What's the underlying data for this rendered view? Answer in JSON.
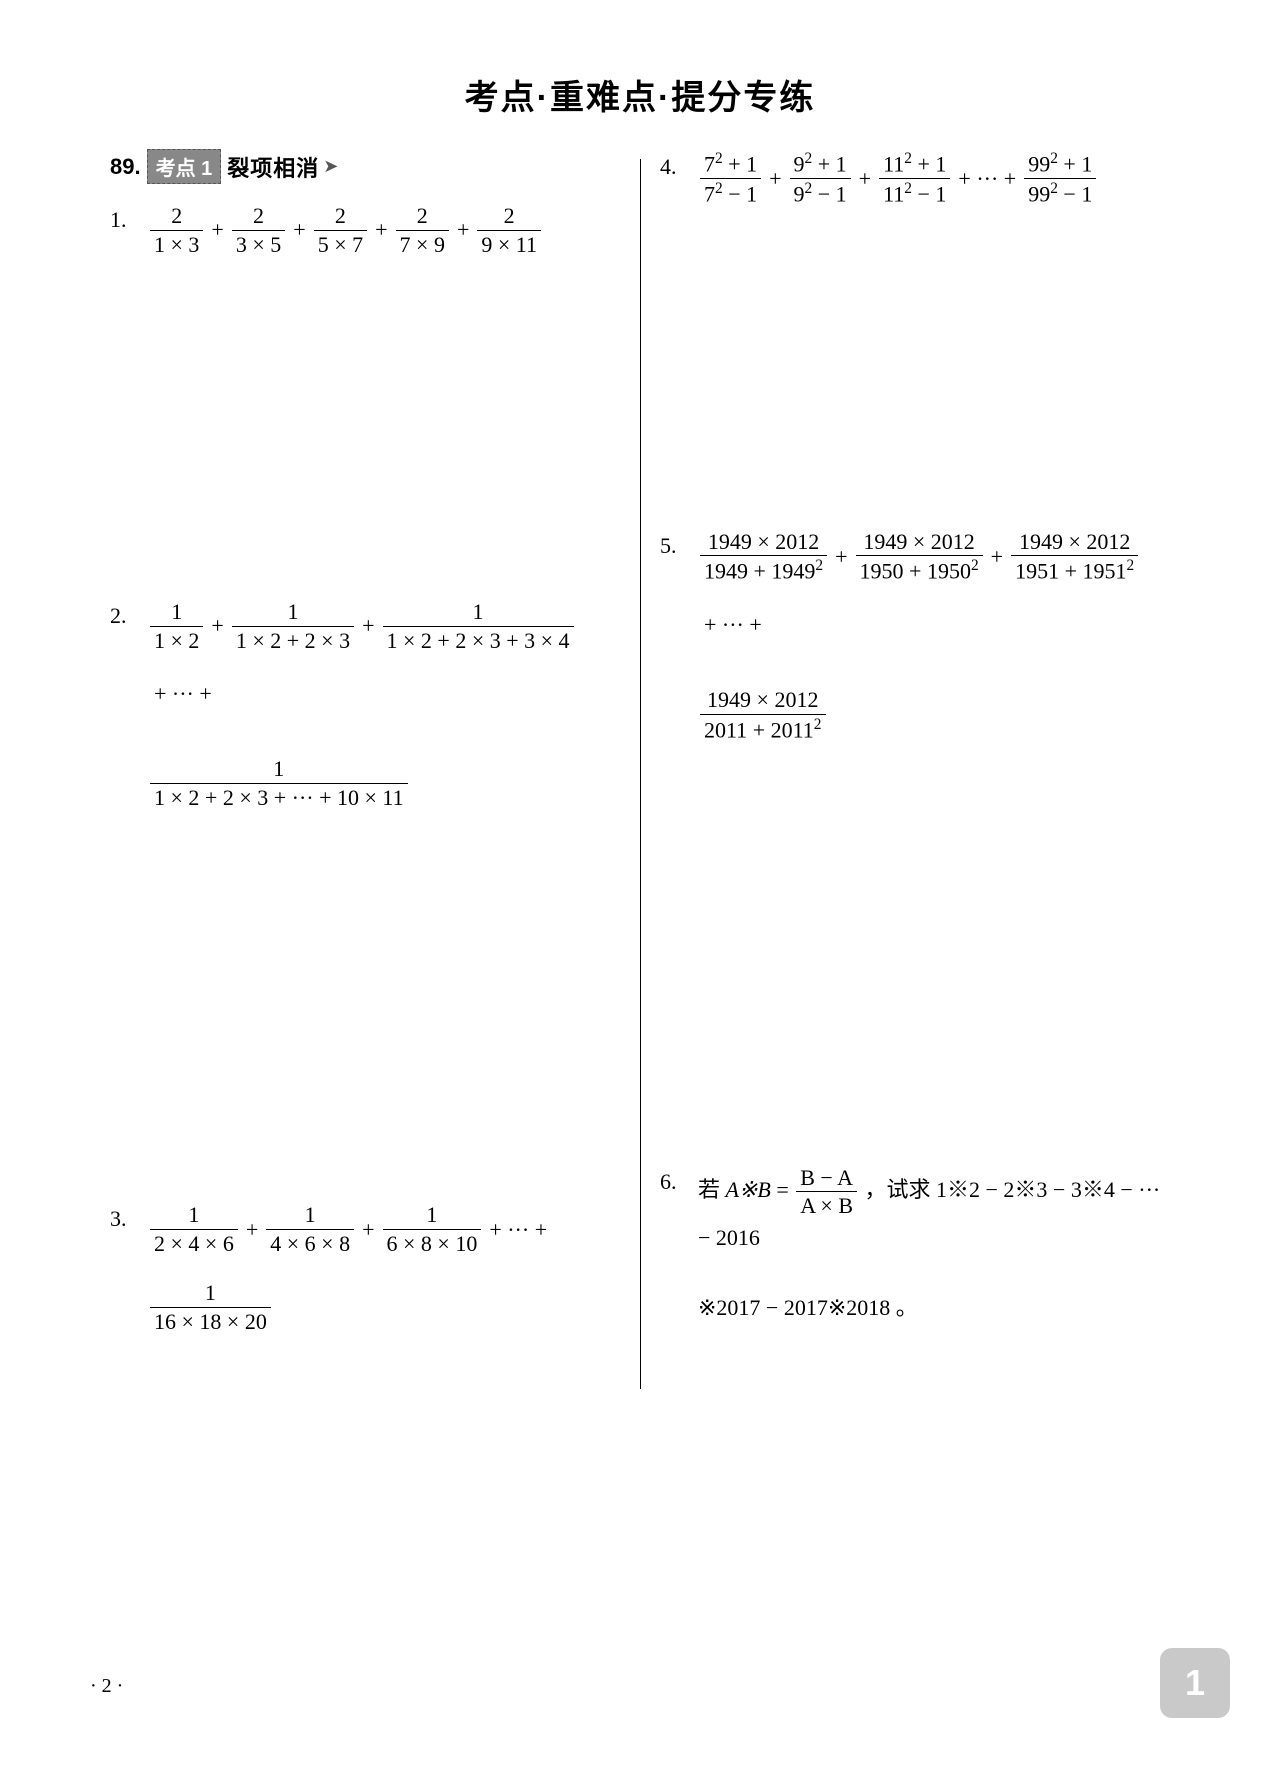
{
  "title": "考点·重难点·提分专练",
  "section": {
    "number": "89.",
    "badge": "考点 1",
    "title": "裂项相消"
  },
  "page_num": "· 2 ·",
  "corner": "1",
  "problems": {
    "p1": {
      "n": "1.",
      "fracs": [
        {
          "num": "2",
          "den": "1 × 3"
        },
        {
          "num": "2",
          "den": "3 × 5"
        },
        {
          "num": "2",
          "den": "5 × 7"
        },
        {
          "num": "2",
          "den": "7 × 9"
        },
        {
          "num": "2",
          "den": "9 × 11"
        }
      ],
      "sep": "+"
    },
    "p2": {
      "n": "2.",
      "fracs": [
        {
          "num": "1",
          "den": "1 × 2"
        },
        {
          "num": "1",
          "den": "1 × 2 + 2 × 3"
        },
        {
          "num": "1",
          "den": "1 × 2 + 2 × 3 + 3 × 4"
        }
      ],
      "tail_text": "+ ··· +",
      "last": {
        "num": "1",
        "den": "1 × 2 + 2 × 3 + ··· + 10 × 11"
      }
    },
    "p3": {
      "n": "3.",
      "fracs": [
        {
          "num": "1",
          "den": "2 × 4 × 6"
        },
        {
          "num": "1",
          "den": "4 × 6 × 8"
        },
        {
          "num": "1",
          "den": "6 × 8 × 10"
        }
      ],
      "tail_text": "+ ··· +",
      "last": {
        "num": "1",
        "den": "16 × 18 × 20"
      }
    },
    "p4": {
      "n": "4.",
      "terms": [
        {
          "a": "7"
        },
        {
          "a": "9"
        },
        {
          "a": "11"
        }
      ],
      "tail_text": "+ ··· +",
      "last": {
        "a": "99"
      }
    },
    "p5": {
      "n": "5.",
      "fracs": [
        {
          "num": "1949 × 2012",
          "den_a": "1949",
          "den_b": "1949"
        },
        {
          "num": "1949 × 2012",
          "den_a": "1950",
          "den_b": "1950"
        },
        {
          "num": "1949 × 2012",
          "den_a": "1951",
          "den_b": "1951"
        }
      ],
      "tail_text": "+ ··· +",
      "last": {
        "num": "1949 × 2012",
        "den_a": "2011",
        "den_b": "2011"
      }
    },
    "p6": {
      "n": "6.",
      "pre": "若 ",
      "defL": "A※B",
      "eq": " = ",
      "defR": {
        "num": "B − A",
        "den": "A × B"
      },
      "post1": " ，试求 1※2 − 2※3 − 3※4 − ··· − 2016",
      "post2": "※2017 − 2017※2018 。"
    }
  }
}
